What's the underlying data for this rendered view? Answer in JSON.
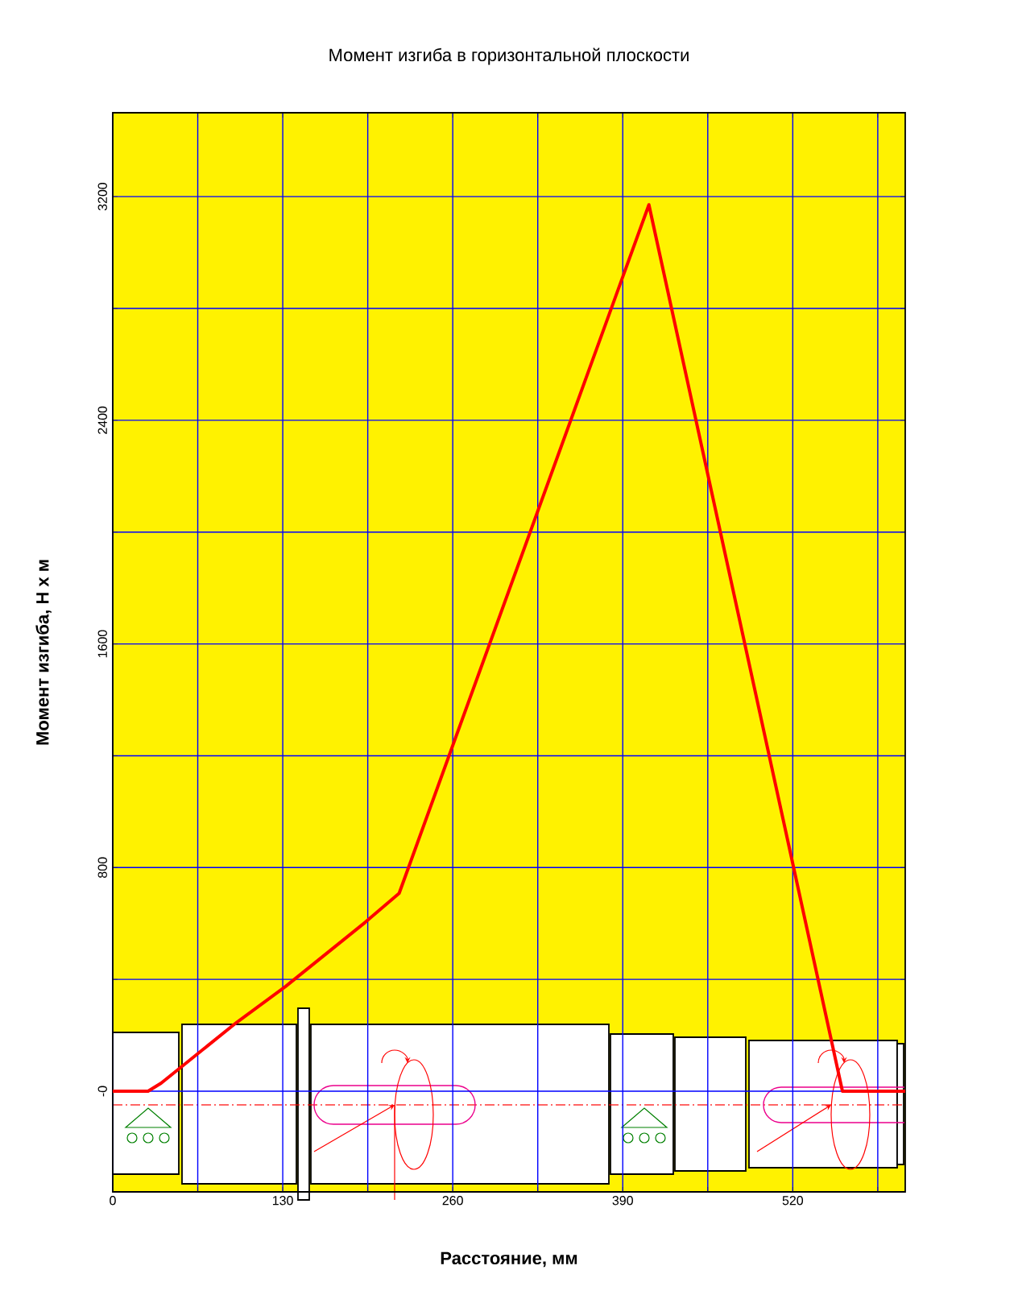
{
  "chart_data": {
    "type": "line",
    "title": "Момент изгиба в горизонтальной плоскости",
    "xlabel": "Расстояние, мм",
    "ylabel": "Момент изгиба, Н х м",
    "x": [
      0,
      27,
      37,
      95,
      132,
      193,
      219,
      410,
      558,
      606
    ],
    "values": [
      0,
      0,
      29,
      247,
      374,
      604,
      708,
      3171,
      0,
      0
    ],
    "color": "#ff0000",
    "xlim": [
      0,
      606
    ],
    "ylim": [
      -360,
      3500
    ],
    "xticks": [
      0,
      {
        "value": 65,
        "label": null
      },
      130,
      {
        "value": 195,
        "label": null
      },
      260,
      {
        "value": 325,
        "label": null
      },
      390,
      {
        "value": 455,
        "label": null
      },
      520,
      {
        "value": 585,
        "label": null
      }
    ],
    "yticks": [
      {
        "value": 0,
        "label": "-0"
      },
      {
        "value": 400,
        "label": null
      },
      800,
      {
        "value": 1200,
        "label": null
      },
      1600,
      {
        "value": 2000,
        "label": null
      },
      2400,
      {
        "value": 2800,
        "label": null
      },
      3200
    ],
    "grid": true
  }
}
